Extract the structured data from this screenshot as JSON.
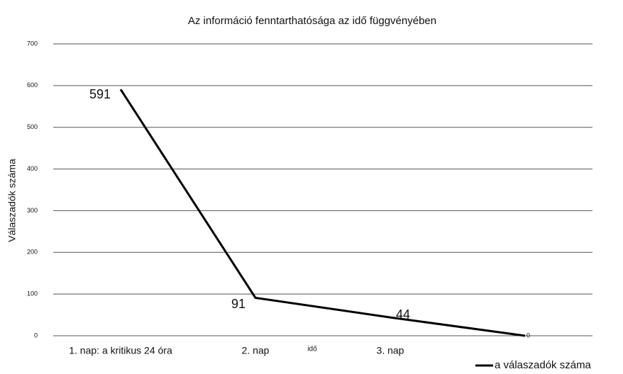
{
  "chart_data": {
    "type": "line",
    "title": "Az információ fenntarthatósága az idő függvényében",
    "x_label": "idő",
    "y_label": "Válaszadók száma",
    "categories": [
      "1. nap: a kritikus 24 óra",
      "2. nap",
      "3. nap",
      null
    ],
    "series": [
      {
        "name": "a válaszadók száma",
        "color": "#000000",
        "values": [
          591,
          91,
          44,
          0
        ]
      }
    ],
    "ylim": [
      0,
      700
    ],
    "yticks": [
      0,
      100,
      200,
      300,
      400,
      500,
      600,
      700
    ],
    "grid": true,
    "legend": "bottom-right"
  }
}
